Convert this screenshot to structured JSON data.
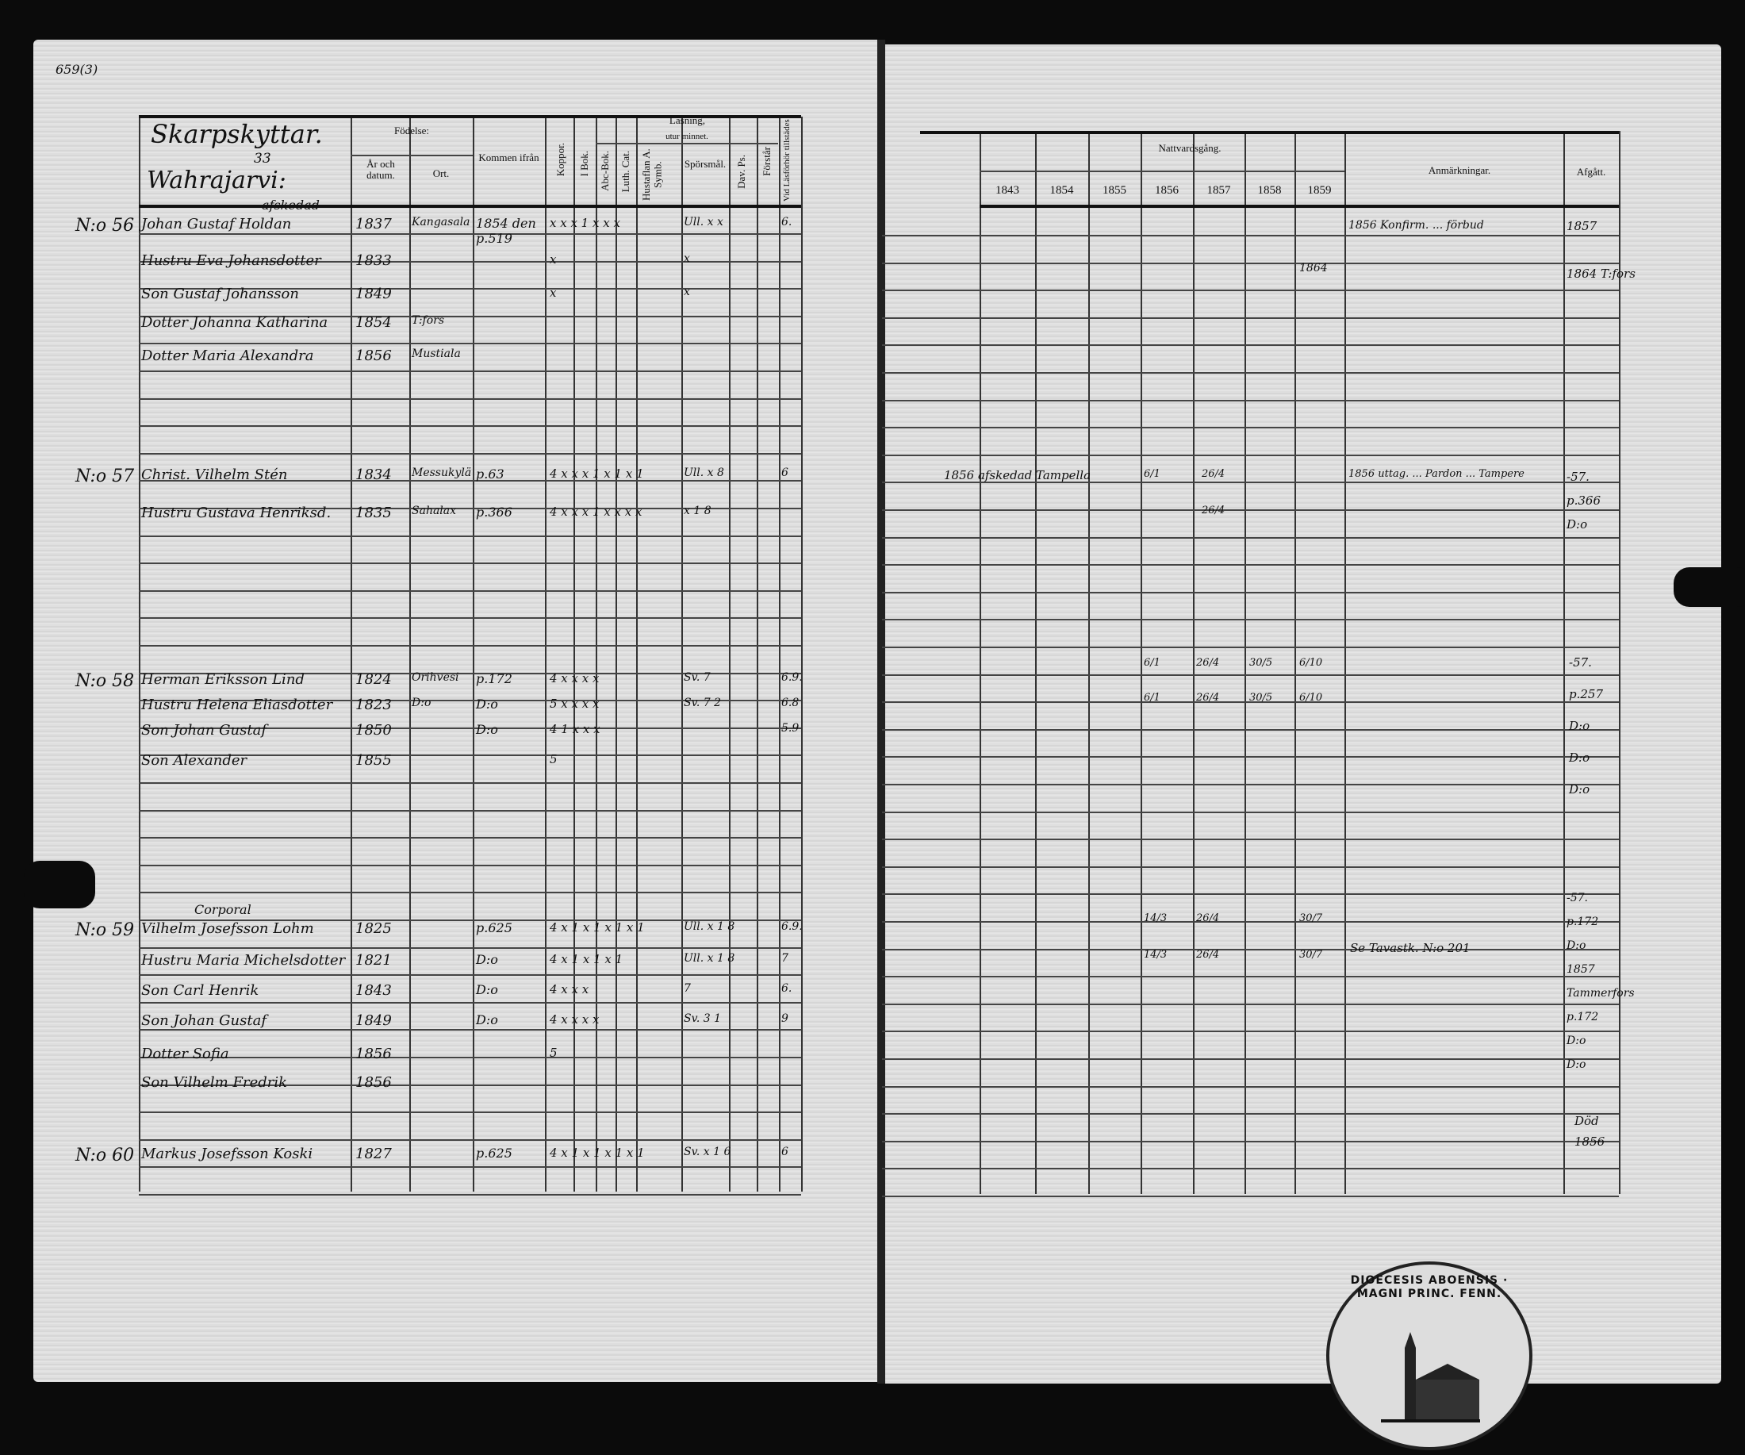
{
  "page_number": "659(3)",
  "left_page": {
    "place_heading": "Skarpskyttar.",
    "page_ref": "33",
    "village": "Wahrajarvi:",
    "headers": {
      "fodelse": "Födelse:",
      "ar_och_datum": "År och datum.",
      "ort": "Ort.",
      "kommen_ifran": "Kommen ifrån",
      "koppor": "Koppor.",
      "lasning": "Läsning,",
      "utur_minnet": "utur minnet.",
      "i_bok": "I Bok.",
      "abc_bok": "Abc-Bok.",
      "luth_cat": "Luth. Cat.",
      "hustaflan": "Hustaflan A. Symb.",
      "sporsmal": "Spörsmål.",
      "dav_ps": "Dav. Ps.",
      "forstar": "Förstår",
      "vid_laslorhor": "Vid Läsförhör tillstädes"
    },
    "households": [
      {
        "no": "N:o 56",
        "persons": [
          {
            "name": "Johan Gustaf Holdan",
            "note": "afskedad",
            "year": "1837",
            "ort": "Kangasala",
            "kommen": "1854 den p.519",
            "marks": "x x  x 1  x x  x",
            "spor": "Ull. x x",
            "vid": "6."
          },
          {
            "name": "Hustru Eva Johansdotter",
            "year": "1833",
            "marks": "x",
            "spor": "x"
          },
          {
            "name": "Son Gustaf Johansson",
            "year": "1849",
            "marks": "x",
            "spor": "x"
          },
          {
            "name": "Dotter Johanna Katharina",
            "year": "1854",
            "ort": "T:fors"
          },
          {
            "name": "Dotter Maria Alexandra",
            "year": "1856",
            "ort": "Mustiala"
          }
        ]
      },
      {
        "no": "N:o 57",
        "persons": [
          {
            "name": "Christ. Vilhelm Stén",
            "year": "1834",
            "ort": "Messukylä",
            "kommen": "p.63",
            "marks": "4  x x  x 1  x 1  x 1",
            "spor": "Ull. x 8",
            "vid": "6"
          },
          {
            "name": "Hustru Gustava Henriksd.",
            "year": "1835",
            "ort": "Sahalax",
            "kommen": "p.366",
            "marks": "4  x x  x 1  x x  x x",
            "spor": "x 1 8"
          }
        ]
      },
      {
        "no": "N:o 58",
        "persons": [
          {
            "name": "Herman Eriksson Lind",
            "year": "1824",
            "ort": "Orihvesi",
            "kommen": "p.172",
            "marks": "4  x  x  x  x",
            "spor": "Sv. 7",
            "vid": "6.9."
          },
          {
            "name": "Hustru Helena Eliasdotter",
            "year": "1823",
            "ort": "D:o",
            "kommen": "D:o",
            "marks": "5  x  x  x  x",
            "spor": "Sv. 7 2",
            "vid": "6.8"
          },
          {
            "name": "Son Johan Gustaf",
            "year": "1850",
            "kommen": "D:o",
            "marks": "4  1  x  x  x",
            "vid": "5.9"
          },
          {
            "name": "Son Alexander",
            "year": "1855",
            "marks": "5"
          }
        ]
      },
      {
        "no": "N:o 59",
        "persons": [
          {
            "name": "Vilhelm Josefsson Lohm",
            "note": "Corporal",
            "year": "1825",
            "kommen": "p.625",
            "marks": "4  x 1  x 1  x 1  x 1",
            "spor": "Ull. x 1 8",
            "vid": "6.9."
          },
          {
            "name": "Hustru Maria Michelsdotter",
            "year": "1821",
            "kommen": "D:o",
            "marks": "4  x 1  x 1  x 1",
            "spor": "Ull. x 1 8",
            "vid": "7"
          },
          {
            "name": "Son Carl Henrik",
            "year": "1843",
            "kommen": "D:o",
            "marks": "4  x  x  x",
            "spor": "7",
            "vid": "6."
          },
          {
            "name": "Son Johan Gustaf",
            "year": "1849",
            "kommen": "D:o",
            "marks": "4  x  x  x  x",
            "spor": "Sv. 3 1",
            "vid": "9"
          },
          {
            "name": "Dotter Sofia",
            "year": "1856",
            "marks": "5"
          },
          {
            "name": "Son Vilhelm Fredrik",
            "year": "1856"
          }
        ]
      },
      {
        "no": "N:o 60",
        "persons": [
          {
            "name": "Markus Josefsson Koski",
            "year": "1827",
            "kommen": "p.625",
            "marks": "4  x 1  x 1  x 1  x 1",
            "spor": "Sv. x 1 6",
            "vid": "6"
          }
        ]
      }
    ]
  },
  "right_page": {
    "headers": {
      "nattvardsgang": "Nattvardsgång.",
      "years": [
        "1843",
        "1854",
        "1855",
        "1856",
        "1857",
        "1858",
        "1859"
      ],
      "anmarkningar": "Anmärkningar.",
      "afgatt": "Afgått."
    },
    "entries": {
      "h56_note": "1856 Konfirm. ... förbud",
      "h56_1859": "1864",
      "h56_afgatt": [
        "1857",
        "1864 T:fors"
      ],
      "h57_1856_text": "1856 afskedad Tampella",
      "h57_comm": [
        "6/1",
        "26/4",
        "26/4"
      ],
      "h57_note": "1856 uttag. ... Pardon ... Tampere",
      "h57_afgatt": [
        "-57.",
        "p.366",
        "D:o"
      ],
      "h58_comm": [
        "6/1",
        "26/4",
        "30/5",
        "6/10"
      ],
      "h58_afgatt": [
        "-57.",
        "p.257",
        "D:o",
        "D:o",
        "D:o"
      ],
      "h59_comm": [
        "14/3",
        "26/4",
        "30/7"
      ],
      "h59_note": "Se Tavastk. N:o 201",
      "h59_afgatt": [
        "-57.",
        "p.172",
        "D:o",
        "1857",
        "Tammerfors",
        "p.172",
        "D:o",
        "D:o"
      ],
      "h60_afgatt": [
        "Död",
        "1856"
      ]
    }
  },
  "stamp": {
    "text": "DIOECESIS ABOENSIS · MAGNI PRINC. FENN."
  }
}
